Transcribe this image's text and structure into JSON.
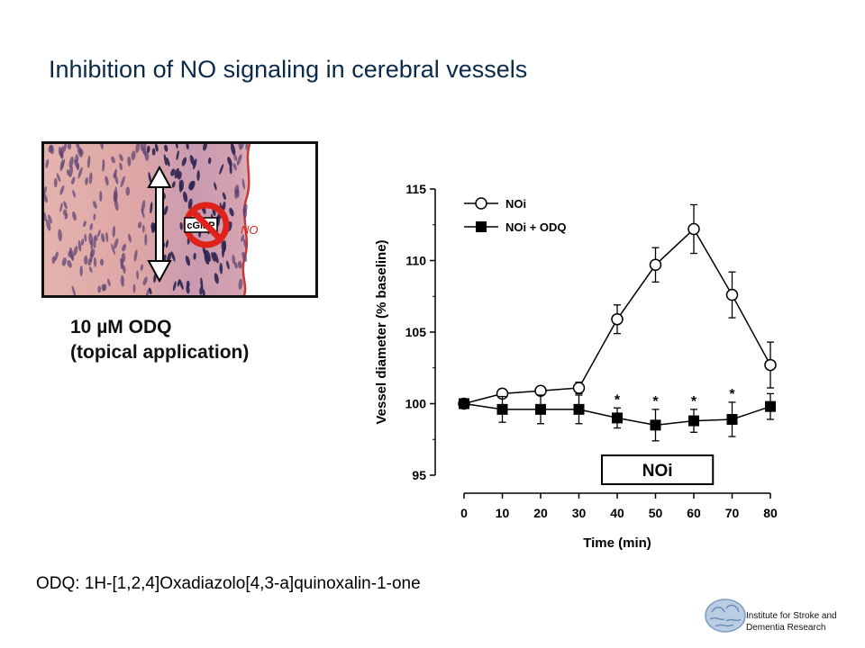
{
  "slide": {
    "title": "Inhibition of NO signaling in cerebral vessels",
    "micrograph": {
      "cgmp_label": "cGMP",
      "no_label": "NO"
    },
    "treatment_line1": "10 µM ODQ",
    "treatment_line2": "(topical application)",
    "footnote": "ODQ: 1H-[1,2,4]Oxadiazolo[4,3-a]quinoxalin-1-one",
    "institute_line1": "Institute for Stroke and",
    "institute_line2": "Dementia Research"
  },
  "chart_data": {
    "type": "line",
    "xlabel": "Time (min)",
    "ylabel": "Vessel diameter (% baseline)",
    "x": [
      0,
      10,
      20,
      30,
      40,
      50,
      60,
      70,
      80
    ],
    "xlim": [
      0,
      80
    ],
    "ylim": [
      95,
      115
    ],
    "yticks": [
      95,
      100,
      105,
      110,
      115
    ],
    "legend_position": "top-left",
    "grid": false,
    "series": [
      {
        "name": "NOi",
        "marker": "open-circle",
        "values": [
          100,
          100.7,
          100.9,
          101.1,
          105.9,
          109.7,
          112.2,
          107.6,
          102.7
        ],
        "errors": [
          0,
          0.3,
          0.3,
          0.4,
          1.0,
          1.2,
          1.7,
          1.6,
          1.6
        ]
      },
      {
        "name": "NOi + ODQ",
        "marker": "filled-square",
        "values": [
          100,
          99.6,
          99.6,
          99.6,
          99.0,
          98.5,
          98.8,
          98.9,
          99.8
        ],
        "errors": [
          0,
          0.9,
          1.0,
          1.0,
          0.7,
          1.1,
          0.8,
          1.2,
          0.9
        ]
      }
    ],
    "significance": [
      {
        "x": 40,
        "label": "*"
      },
      {
        "x": 50,
        "label": "*"
      },
      {
        "x": 60,
        "label": "*"
      },
      {
        "x": 70,
        "label": "*"
      }
    ],
    "annotation_box": {
      "label": "NOi",
      "x_start": 36,
      "x_end": 65
    }
  }
}
